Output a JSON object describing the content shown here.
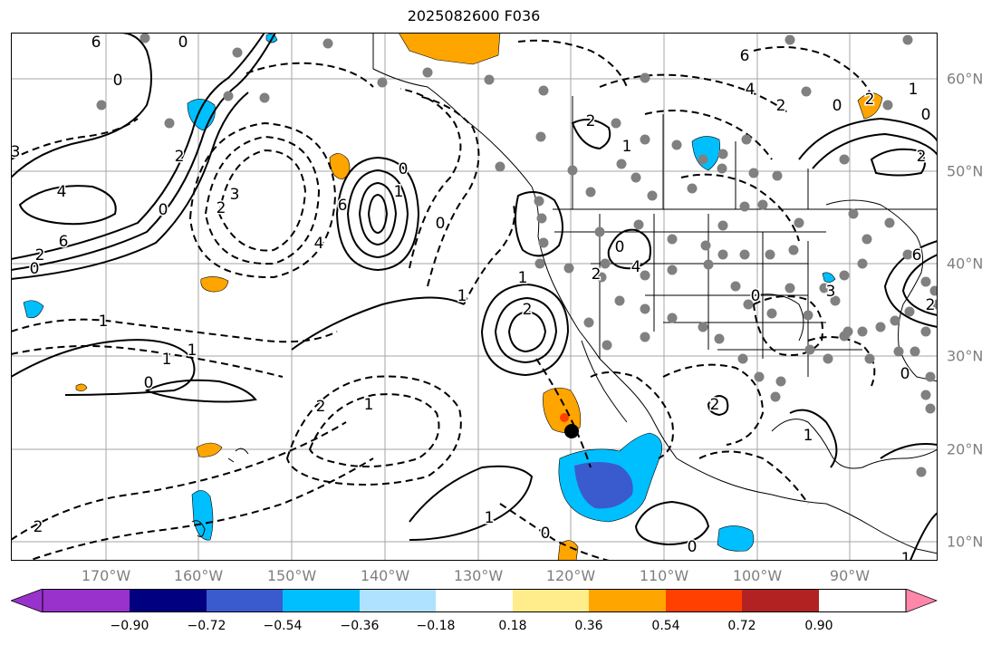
{
  "title": "2025082600 F036",
  "lon_ticks": [
    "170°W",
    "160°W",
    "150°W",
    "140°W",
    "130°W",
    "120°W",
    "110°W",
    "100°W",
    "90°W"
  ],
  "lat_ticks": [
    "60°N",
    "50°N",
    "40°N",
    "30°N",
    "20°N",
    "10°N"
  ],
  "contour_labels": [
    "6",
    "0",
    "0",
    "3",
    "4",
    "6",
    "2",
    "0",
    "1",
    "1",
    "0",
    "1",
    "2",
    "0",
    "6",
    "4",
    "0",
    "1",
    "2",
    "3",
    "6",
    "4",
    "2",
    "0",
    "2",
    "1",
    "0",
    "2",
    "1",
    "2",
    "1",
    "0",
    "2",
    "1",
    "0",
    "4",
    "2",
    "0",
    "3",
    "6",
    "2",
    "1",
    "2",
    "1",
    "0",
    "0",
    "2",
    "1",
    "1",
    "2",
    "0"
  ],
  "colorbar": {
    "labels": [
      "−0.90",
      "−0.72",
      "−0.54",
      "−0.36",
      "−0.18",
      "0.18",
      "0.36",
      "0.54",
      "0.72",
      "0.90"
    ],
    "colors": [
      "#9932cc",
      "#000080",
      "#3a5bcd",
      "#00bfff",
      "#aee2ff",
      "#ffffff",
      "#ffec8b",
      "#ffa500",
      "#ff4000",
      "#b22222",
      "#ff88aa"
    ]
  },
  "colors": {
    "contour": "#000000",
    "grid": "#a6a6a6",
    "coast": "#000000",
    "station": "#808080",
    "marker": "#000000",
    "pos_light": "#ffec8b",
    "pos_mid": "#ffa500",
    "pos_strong": "#ff4000",
    "neg_light": "#aee2ff",
    "neg_mid": "#00bfff",
    "neg_strong": "#3a5bcd"
  },
  "marker_label": ""
}
